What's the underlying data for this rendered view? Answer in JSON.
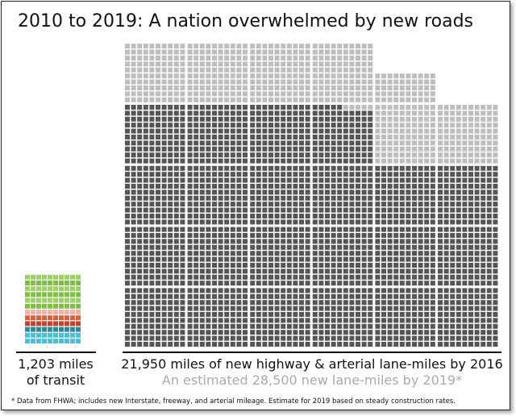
{
  "chart_data": {
    "type": "waffle",
    "title": "2010 to 2019: A nation overwhelmed by new roads",
    "categories": [
      "1,203 miles of transit",
      "21,950 miles of new highway & arterial lane-miles by 2016",
      "An estimated 28,500 new lane-miles by 2019*"
    ],
    "values": [
      1203,
      21950,
      28500
    ],
    "colors": [
      [
        "#4cbfd2",
        "#4cbfd2",
        "#2a8a9a",
        "#c0442c",
        "#d2603a",
        "#f2b0a6",
        "#7fbe45",
        "#9fd068",
        "#7fbe45",
        "#9fd068",
        "#7fbe45",
        "#9fd068"
      ],
      "#555555",
      "#bdbdbd"
    ],
    "footnote": "* Data from FHWA; includes new Interstate, freeway, and arterial mileage. Estimate for 2019 based on steady construction rates."
  }
}
